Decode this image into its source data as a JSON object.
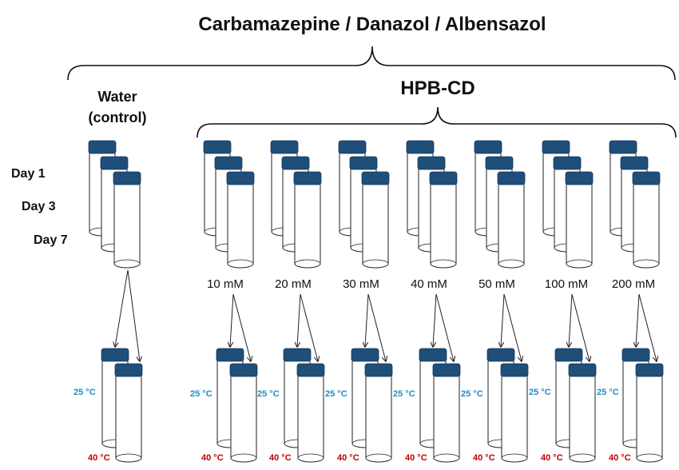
{
  "title": "Carbamazepine / Danazol / Albensazol",
  "hpbcd_label": "HPB-CD",
  "water_label_line1": "Water",
  "water_label_line2": "(control)",
  "days": [
    "Day 1",
    "Day 3",
    "Day 7"
  ],
  "concentrations": [
    "10 mM",
    "20 mM",
    "30 mM",
    "40 mM",
    "50 mM",
    "100 mM",
    "200 mM"
  ],
  "temperatures": {
    "low": "25 °C",
    "high": "40 °C"
  },
  "colors": {
    "cap": "#1f4e79",
    "temp_low": "#1e8bc3",
    "temp_high": "#c00000"
  }
}
